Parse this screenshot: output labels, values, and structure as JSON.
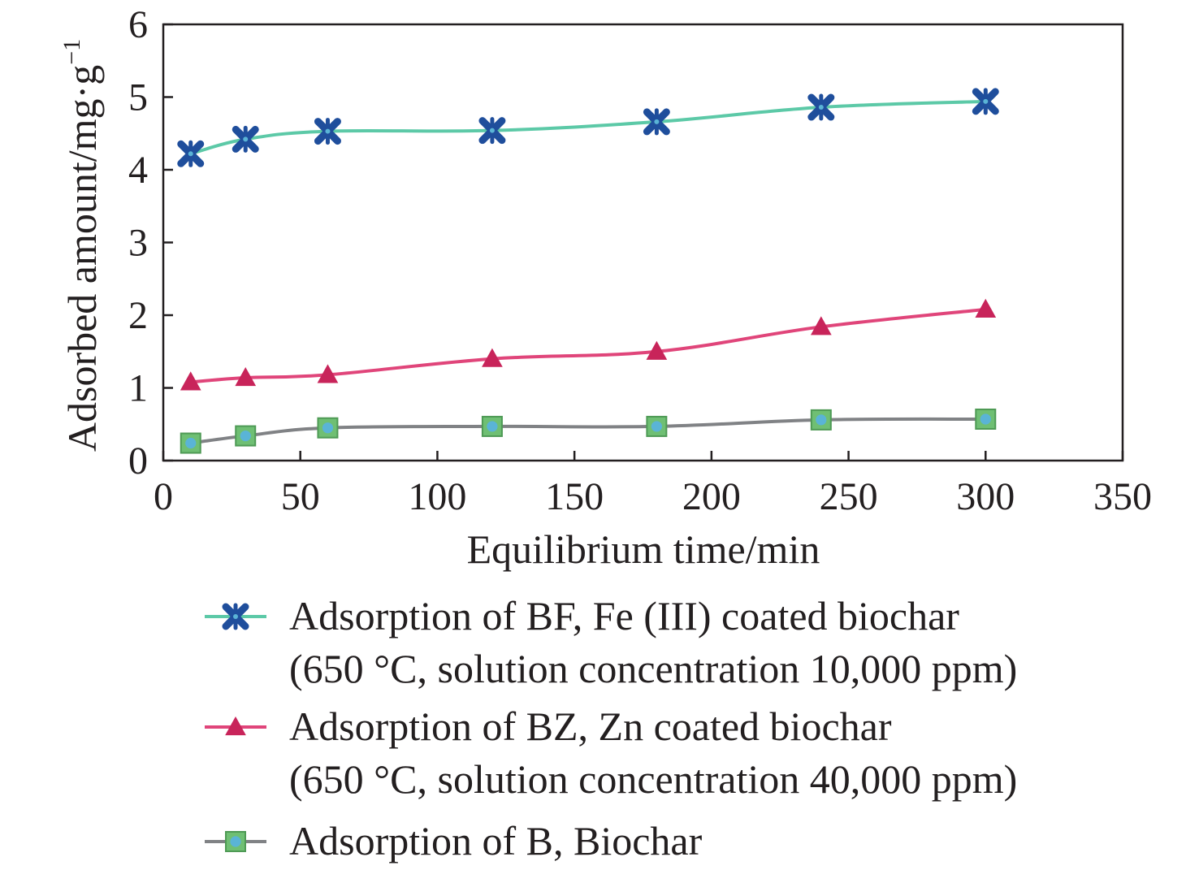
{
  "chart_data": {
    "type": "line",
    "xlabel": "Equilibrium time/min",
    "ylabel_main": "Adsorbed amount/mg·g",
    "ylabel_sup": "−1",
    "xlim": [
      0,
      350
    ],
    "ylim": [
      0,
      6
    ],
    "xticks": [
      "0",
      "50",
      "100",
      "150",
      "200",
      "250",
      "300",
      "350"
    ],
    "yticks": [
      "0",
      "1",
      "2",
      "3",
      "4",
      "5",
      "6"
    ],
    "grid": false,
    "legend_position": "bottom",
    "x": [
      10,
      30,
      60,
      120,
      180,
      240,
      300
    ],
    "series": [
      {
        "name": "Adsorption of BF, Fe (III) coated biochar (650 °C, solution concentration 10,000 ppm)",
        "name_lines": [
          "Adsorption of BF, Fe (III) coated biochar",
          "(650 °C, solution concentration 10,000 ppm)"
        ],
        "marker": "x-star",
        "line_color": "#5cc9a7",
        "marker_color": "#1f4e9c",
        "values": [
          4.22,
          4.42,
          4.53,
          4.54,
          4.66,
          4.86,
          4.94
        ]
      },
      {
        "name": "Adsorption of BZ, Zn coated biochar (650 °C, solution concentration 40,000 ppm)",
        "name_lines": [
          "Adsorption of BZ, Zn coated biochar",
          "(650 °C, solution concentration 40,000 ppm)"
        ],
        "marker": "triangle",
        "line_color": "#e0457a",
        "marker_color": "#c8245a",
        "values": [
          1.08,
          1.14,
          1.18,
          1.4,
          1.5,
          1.84,
          2.08
        ]
      },
      {
        "name": "Adsorption of B, Biochar",
        "name_lines": [
          "Adsorption of B, Biochar"
        ],
        "marker": "square",
        "line_color": "#808285",
        "marker_color": "#6fbf73",
        "marker_inner": "#5ab4d6",
        "values": [
          0.24,
          0.34,
          0.45,
          0.47,
          0.47,
          0.56,
          0.57
        ]
      }
    ]
  }
}
